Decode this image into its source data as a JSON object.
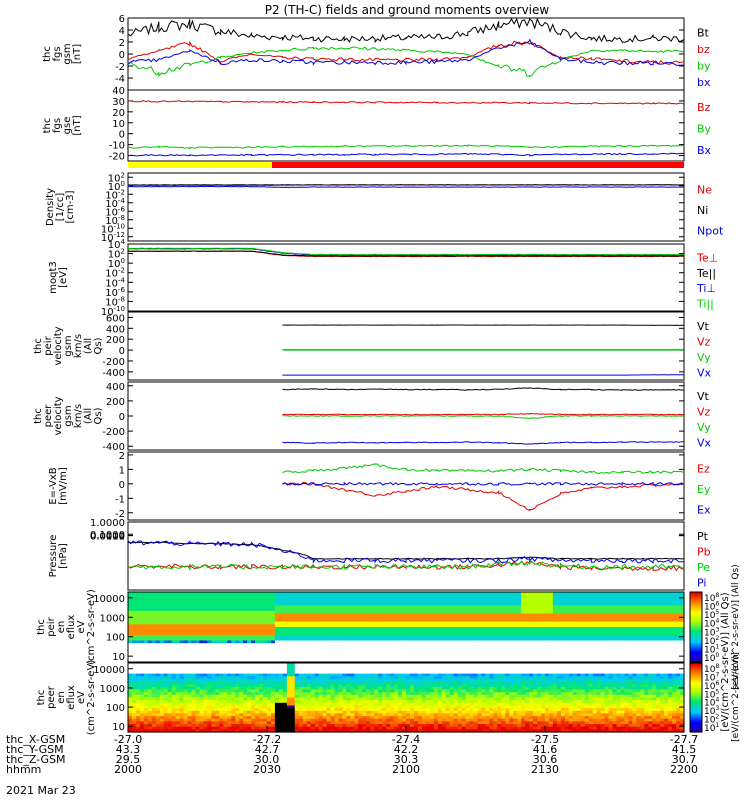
{
  "title": "P2 (TH-C) fields and ground moments overview",
  "date": "2021 Mar 23",
  "colors": {
    "black": "#000000",
    "red": "#e00000",
    "green": "#00c800",
    "blue": "#0000e0",
    "yellow": "#ffff00"
  },
  "ephem": {
    "row_labels": [
      "thc_X-GSM",
      "thc_Y-GSM",
      "thc_Z-GSM",
      "hhmm"
    ],
    "ticks": [
      {
        "x": "-27.0",
        "y": "43.3",
        "z": "29.5",
        "t": "2000"
      },
      {
        "x": "-27.2",
        "y": "42.7",
        "z": "30.0",
        "t": "2030"
      },
      {
        "x": "-27.4",
        "y": "42.2",
        "z": "30.3",
        "t": "2100"
      },
      {
        "x": "-27.5",
        "y": "41.6",
        "z": "30.6",
        "t": "2130"
      },
      {
        "x": "-27.7",
        "y": "41.5",
        "z": "30.7",
        "t": "2200"
      }
    ]
  },
  "colorbar": {
    "label": "[eV/(cm^2-s-sr-eV)] (All Qs)",
    "upper_label": "[eV/(cm^2-s-sr-eV)] (All Qs)",
    "lower_label": "[eV/(cm^2-s-sr-eV)]",
    "upper_ticks": [
      "10^8",
      "10^6",
      "10^5",
      "10^4",
      "10^3",
      "10^2",
      "10^1",
      "10^0"
    ],
    "lower_ticks": [
      "10^8",
      "10^7",
      "10^6",
      "10^5",
      "10^4",
      "10^3",
      "10^2",
      "10^1"
    ]
  },
  "chart_data": [
    {
      "type": "line",
      "ylabel": "thc fgs gsm [nT]",
      "ylim": [
        -6,
        6
      ],
      "yticks": [
        "6",
        "4",
        "2",
        "0",
        "-2",
        "-4"
      ],
      "series": [
        {
          "name": "Bt",
          "color": "#000000",
          "values": [
            3.2,
            4.5,
            5.0,
            3.8,
            3.0,
            2.8,
            2.6,
            2.5,
            2.6,
            2.7,
            2.8,
            3.5,
            4.8,
            5.5,
            3.8,
            2.6,
            2.5,
            2.6,
            2.6
          ]
        },
        {
          "name": "bz",
          "color": "#e00000",
          "values": [
            -0.8,
            0.5,
            1.8,
            -1.2,
            0.0,
            -0.6,
            -0.8,
            -0.9,
            -1.0,
            -1.0,
            -0.9,
            -0.5,
            1.5,
            2.0,
            -0.5,
            -0.8,
            -1.2,
            -1.4,
            -1.5
          ]
        },
        {
          "name": "by",
          "color": "#00c800",
          "values": [
            -1.5,
            -3.0,
            -1.8,
            -0.6,
            0.2,
            0.6,
            1.0,
            1.0,
            0.9,
            0.6,
            0.4,
            0.0,
            -2.0,
            -3.2,
            -1.0,
            0.6,
            0.6,
            0.4,
            0.5
          ]
        },
        {
          "name": "bx",
          "color": "#0000e0",
          "values": [
            -1.4,
            -1.0,
            0.6,
            -1.5,
            -1.0,
            -1.2,
            -1.4,
            -1.4,
            -1.4,
            -1.4,
            -1.3,
            -1.0,
            1.0,
            2.0,
            -0.8,
            -1.4,
            -1.5,
            -1.5,
            -1.6
          ]
        }
      ]
    },
    {
      "type": "line",
      "ylabel": "thc fgs gse [nT]",
      "ylim": [
        -25,
        40
      ],
      "yticks": [
        "40",
        "30",
        "20",
        "10",
        "0",
        "-10",
        "-20"
      ],
      "series": [
        {
          "name": "Bz",
          "color": "#e00000",
          "values": [
            30,
            29.5,
            29.5,
            29.3,
            29.1,
            29,
            28.9,
            28.8,
            28.7,
            28.6,
            28.5,
            28.4,
            28.3,
            28.2,
            28,
            27.9,
            27.8,
            27.7,
            27.5
          ]
        },
        {
          "name": "By",
          "color": "#00c800",
          "values": [
            -13,
            -12,
            -13,
            -12.5,
            -12.5,
            -12,
            -11.8,
            -11.5,
            -11.4,
            -11.2,
            -11,
            -11,
            -11.4,
            -12.5,
            -12,
            -11.5,
            -11.3,
            -11.1,
            -11
          ]
        },
        {
          "name": "Bx",
          "color": "#0000e0",
          "values": [
            -20,
            -19.5,
            -19.8,
            -19.5,
            -19.6,
            -19.4,
            -19.2,
            -19.2,
            -19,
            -18.9,
            -18.8,
            -18.6,
            -18.9,
            -19.6,
            -19,
            -18.7,
            -18.6,
            -18.4,
            -18.2
          ]
        }
      ]
    },
    {
      "type": "line",
      "ylabel": "Density [1/cc] [cm-3]",
      "ylim": [
        -13,
        3
      ],
      "log_scale": true,
      "yticks": [
        "10^2",
        "10^0",
        "10^-2",
        "10^-4",
        "10^-6",
        "10^-8",
        "10^-10",
        "10^-12"
      ],
      "series": [
        {
          "name": "Ne",
          "color": "#e00000",
          "values": [
            0.1,
            0.1,
            0.1,
            0.1,
            0.1,
            0.15,
            0.2,
            0.2,
            0.2,
            0.2,
            0.2,
            0.2,
            0.2,
            0.2,
            0.2,
            0.2,
            0.2,
            0.2,
            0.2
          ]
        },
        {
          "name": "Ni",
          "color": "#000000",
          "values": [
            0.2,
            0.2,
            0.2,
            0.2,
            0.2,
            0.2,
            0.2,
            0.2,
            0.2,
            0.2,
            0.2,
            0.2,
            0.2,
            0.2,
            0.2,
            0.2,
            0.2,
            0.2,
            0.2
          ]
        },
        {
          "name": "Npot",
          "color": "#0000e0",
          "values": [
            -0.2,
            -0.2,
            -0.2,
            -0.2,
            -0.2,
            -0.4,
            -0.3,
            -0.3,
            -0.3,
            -0.3,
            -0.3,
            -0.3,
            -0.3,
            -0.3,
            -0.3,
            -0.3,
            -0.3,
            -0.3,
            -0.3
          ]
        }
      ]
    },
    {
      "type": "line",
      "ylabel": "moqt3 [eV]",
      "ylim": [
        -10,
        4
      ],
      "log_scale": true,
      "yticks": [
        "10^4",
        "10^2",
        "10^0",
        "10^-2",
        "10^-4",
        "10^-6",
        "10^-8",
        "10^-10"
      ],
      "series": [
        {
          "name": "Te⊥",
          "color": "#e00000",
          "values": [
            2.5,
            2.5,
            2.5,
            2.5,
            2.5,
            1.6,
            1.4,
            1.4,
            1.4,
            1.4,
            1.4,
            1.4,
            1.4,
            1.4,
            1.4,
            1.4,
            1.4,
            1.4,
            1.4
          ]
        },
        {
          "name": "Te||",
          "color": "#000000",
          "values": [
            2.5,
            2.5,
            2.5,
            2.5,
            2.5,
            1.7,
            1.5,
            1.5,
            1.5,
            1.5,
            1.5,
            1.5,
            1.5,
            1.5,
            1.5,
            1.5,
            1.5,
            1.5,
            1.5
          ]
        },
        {
          "name": "Ti⊥",
          "color": "#0000e0",
          "values": [
            3.0,
            3.0,
            3.0,
            3.0,
            3.0,
            2.1,
            1.7,
            1.7,
            1.7,
            1.7,
            1.7,
            1.7,
            1.7,
            1.7,
            1.7,
            1.7,
            1.7,
            1.7,
            1.7
          ]
        },
        {
          "name": "Ti||",
          "color": "#00c800",
          "values": [
            3.1,
            3.1,
            3.1,
            3.1,
            3.1,
            2.2,
            1.8,
            1.8,
            1.8,
            1.8,
            1.8,
            1.8,
            1.8,
            1.8,
            1.8,
            1.8,
            1.8,
            1.8,
            1.8
          ]
        }
      ]
    },
    {
      "type": "line",
      "ylabel": "thc peir velocity gsm km/s (All Qs)",
      "ylim": [
        -550,
        700
      ],
      "x_start": 5.0,
      "yticks": [
        "600",
        "400",
        "200",
        "0",
        "-200",
        "-400"
      ],
      "series": [
        {
          "name": "Vt",
          "color": "#000000",
          "values": [
            460,
            460,
            460,
            460,
            460,
            460,
            460,
            460,
            460,
            460,
            460,
            460,
            455,
            455
          ]
        },
        {
          "name": "Vz",
          "color": "#e00000",
          "values": [
            5,
            5,
            5,
            5,
            5,
            5,
            5,
            5,
            5,
            5,
            5,
            5,
            5,
            5
          ]
        },
        {
          "name": "Vy",
          "color": "#00c800",
          "values": [
            0,
            0,
            0,
            0,
            0,
            0,
            0,
            0,
            0,
            0,
            0,
            0,
            0,
            0
          ]
        },
        {
          "name": "Vx",
          "color": "#0000e0",
          "values": [
            -460,
            -460,
            -460,
            -460,
            -460,
            -460,
            -460,
            -460,
            -460,
            -460,
            -460,
            -460,
            -455,
            -455
          ]
        }
      ]
    },
    {
      "type": "line",
      "ylabel": "thc peer velocity gsm km/s (All Qs)",
      "ylim": [
        -450,
        450
      ],
      "x_start": 5.0,
      "yticks": [
        "400",
        "200",
        "0",
        "-200",
        "-400"
      ],
      "series": [
        {
          "name": "Vt",
          "color": "#000000",
          "values": [
            350,
            360,
            350,
            355,
            350,
            350,
            345,
            355,
            370,
            350,
            350,
            345,
            345,
            345
          ]
        },
        {
          "name": "Vz",
          "color": "#e00000",
          "values": [
            20,
            20,
            20,
            20,
            20,
            20,
            20,
            20,
            30,
            20,
            20,
            20,
            20,
            20
          ]
        },
        {
          "name": "Vy",
          "color": "#00c800",
          "values": [
            0,
            0,
            0,
            0,
            0,
            0,
            0,
            0,
            -30,
            0,
            0,
            0,
            0,
            0
          ]
        },
        {
          "name": "Vx",
          "color": "#0000e0",
          "values": [
            -350,
            -360,
            -350,
            -355,
            -350,
            -350,
            -345,
            -355,
            -370,
            -350,
            -350,
            -345,
            -345,
            -345
          ]
        }
      ]
    },
    {
      "type": "line",
      "ylabel": "E=-VxB [mV/m]",
      "ylim": [
        -2.5,
        2.2
      ],
      "yticks": [
        "2",
        "1",
        "0",
        "-1",
        "-2"
      ],
      "series": [
        {
          "name": "Ez",
          "color": "#e00000",
          "values": [
            null,
            null,
            null,
            null,
            null,
            0,
            0,
            -0.4,
            -0.8,
            -0.5,
            -0.2,
            -0.4,
            -0.6,
            -1.8,
            -0.7,
            -0.3,
            -0.2,
            -0.1,
            0
          ]
        },
        {
          "name": "Ey",
          "color": "#00c800",
          "values": [
            null,
            null,
            null,
            null,
            null,
            0.8,
            0.9,
            1.1,
            1.3,
            1.0,
            0.9,
            0.9,
            0.9,
            1.0,
            0.9,
            0.8,
            0.8,
            0.8,
            0.8
          ]
        },
        {
          "name": "Ex",
          "color": "#0000e0",
          "values": [
            null,
            null,
            null,
            null,
            null,
            0,
            0,
            0,
            0,
            0,
            0,
            0,
            0,
            0,
            0,
            0,
            0,
            0,
            0
          ]
        }
      ]
    },
    {
      "type": "line",
      "ylabel": "Pressure [nPa]",
      "ylim": [
        -4,
        1
      ],
      "log_scale": true,
      "yticks": [
        "1.0000",
        "0.1000",
        "0.0100",
        "0.0010",
        "0.0001"
      ],
      "series": [
        {
          "name": "Pt",
          "color": "#000000",
          "values": [
            0.3,
            0.32,
            0.26,
            0.25,
            0.22,
            0.08,
            0.02,
            0.02,
            0.02,
            0.02,
            0.02,
            0.02,
            0.02,
            0.025,
            0.02,
            0.02,
            0.02,
            0.02,
            0.02
          ]
        },
        {
          "name": "Pb",
          "color": "#e00000",
          "values": [
            0.005,
            0.006,
            0.005,
            0.005,
            0.005,
            0.005,
            0.005,
            0.005,
            0.005,
            0.005,
            0.005,
            0.005,
            0.007,
            0.01,
            0.005,
            0.004,
            0.004,
            0.004,
            0.004
          ]
        },
        {
          "name": "Pe",
          "color": "#00c800",
          "values": [
            0.005,
            0.005,
            0.005,
            0.005,
            0.005,
            0.005,
            0.005,
            0.005,
            0.005,
            0.005,
            0.005,
            0.005,
            0.008,
            0.01,
            0.006,
            0.005,
            0.005,
            0.005,
            0.005
          ]
        },
        {
          "name": "Pi",
          "color": "#0000e0",
          "values": [
            0.3,
            0.3,
            0.25,
            0.24,
            0.22,
            0.07,
            0.015,
            0.015,
            0.015,
            0.015,
            0.015,
            0.015,
            0.015,
            0.02,
            0.015,
            0.015,
            0.015,
            0.015,
            0.015
          ]
        }
      ]
    },
    {
      "type": "heatmap",
      "ylabel": "thc peir en eflux eV (cm^2-s-sr-eV)",
      "ylim": [
        5,
        20000
      ],
      "log_scale": true,
      "yticks": [
        "10000",
        "1000",
        "100",
        "10"
      ]
    },
    {
      "type": "heatmap",
      "ylabel": "thc peer en eflux eV (cm^2-s-sr-eV)",
      "ylim": [
        5,
        20000
      ],
      "log_scale": true,
      "yticks": [
        "10000",
        "1000",
        "100",
        "10"
      ]
    }
  ]
}
